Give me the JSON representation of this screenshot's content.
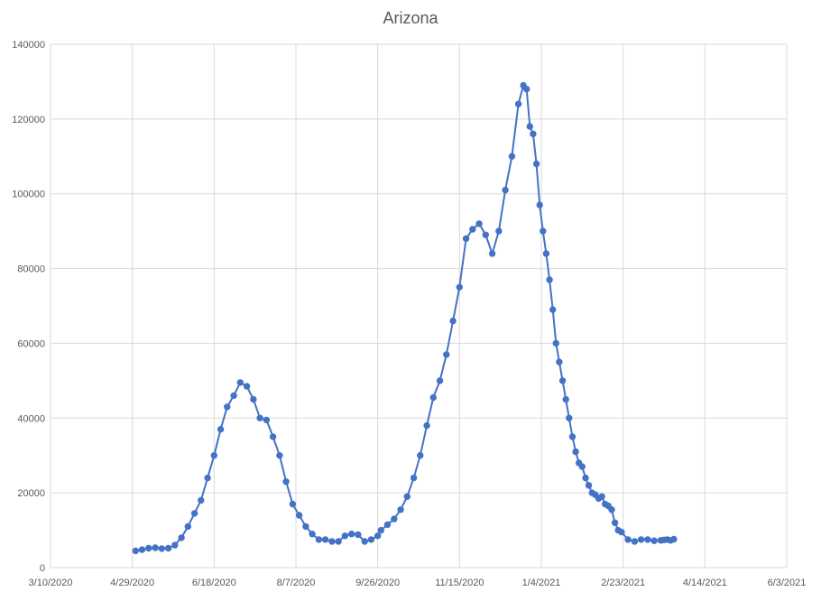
{
  "chart_data": {
    "type": "line",
    "title": "Arizona",
    "xlabel": "",
    "ylabel": "",
    "x_axis": {
      "type": "date",
      "min": "2020-03-10",
      "max": "2021-06-03",
      "tick_labels": [
        "3/10/2020",
        "4/29/2020",
        "6/18/2020",
        "8/7/2020",
        "9/26/2020",
        "11/15/2020",
        "1/4/2021",
        "2/23/2021",
        "4/14/2021",
        "6/3/2021"
      ]
    },
    "y_axis": {
      "min": 0,
      "max": 140000,
      "tick_labels": [
        "0",
        "20000",
        "40000",
        "60000",
        "80000",
        "100000",
        "120000",
        "140000"
      ]
    },
    "gridlines": true,
    "legend": "none",
    "series_color": "#4472C4",
    "x": [
      "2020-05-01",
      "2020-05-05",
      "2020-05-09",
      "2020-05-13",
      "2020-05-17",
      "2020-05-21",
      "2020-05-25",
      "2020-05-29",
      "2020-06-02",
      "2020-06-06",
      "2020-06-10",
      "2020-06-14",
      "2020-06-18",
      "2020-06-22",
      "2020-06-26",
      "2020-06-30",
      "2020-07-04",
      "2020-07-08",
      "2020-07-12",
      "2020-07-16",
      "2020-07-20",
      "2020-07-24",
      "2020-07-28",
      "2020-08-01",
      "2020-08-05",
      "2020-08-09",
      "2020-08-13",
      "2020-08-17",
      "2020-08-21",
      "2020-08-25",
      "2020-08-29",
      "2020-09-02",
      "2020-09-06",
      "2020-09-10",
      "2020-09-14",
      "2020-09-18",
      "2020-09-22",
      "2020-09-26",
      "2020-09-28",
      "2020-10-02",
      "2020-10-06",
      "2020-10-10",
      "2020-10-14",
      "2020-10-18",
      "2020-10-22",
      "2020-10-26",
      "2020-10-30",
      "2020-11-03",
      "2020-11-07",
      "2020-11-11",
      "2020-11-15",
      "2020-11-19",
      "2020-11-23",
      "2020-11-27",
      "2020-12-01",
      "2020-12-05",
      "2020-12-09",
      "2020-12-13",
      "2020-12-17",
      "2020-12-21",
      "2020-12-24",
      "2020-12-26",
      "2020-12-28",
      "2020-12-30",
      "2021-01-01",
      "2021-01-03",
      "2021-01-05",
      "2021-01-07",
      "2021-01-09",
      "2021-01-11",
      "2021-01-13",
      "2021-01-15",
      "2021-01-17",
      "2021-01-19",
      "2021-01-21",
      "2021-01-23",
      "2021-01-25",
      "2021-01-27",
      "2021-01-29",
      "2021-01-31",
      "2021-02-02",
      "2021-02-04",
      "2021-02-06",
      "2021-02-08",
      "2021-02-10",
      "2021-02-12",
      "2021-02-14",
      "2021-02-16",
      "2021-02-18",
      "2021-02-20",
      "2021-02-22",
      "2021-02-26",
      "2021-03-02",
      "2021-03-06",
      "2021-03-10",
      "2021-03-14",
      "2021-03-18",
      "2021-03-20",
      "2021-03-22",
      "2021-03-24",
      "2021-03-26"
    ],
    "values": [
      4500,
      4800,
      5200,
      5300,
      5100,
      5200,
      6000,
      8000,
      11000,
      14500,
      18000,
      24000,
      30000,
      37000,
      43000,
      46000,
      49500,
      48500,
      45000,
      40000,
      39500,
      35000,
      30000,
      23000,
      17000,
      14000,
      11000,
      9000,
      7500,
      7500,
      7000,
      7000,
      8500,
      9000,
      8800,
      7000,
      7500,
      8500,
      10000,
      11500,
      13000,
      15500,
      19000,
      24000,
      30000,
      38000,
      45500,
      50000,
      57000,
      66000,
      75000,
      88000,
      90500,
      92000,
      89000,
      84000,
      90000,
      101000,
      110000,
      124000,
      129000,
      128000,
      118000,
      116000,
      108000,
      97000,
      90000,
      84000,
      77000,
      69000,
      60000,
      55000,
      50000,
      45000,
      40000,
      35000,
      31000,
      28000,
      27000,
      24000,
      22000,
      20000,
      19500,
      18500,
      19000,
      17000,
      16500,
      15500,
      12000,
      10000,
      9500,
      7500,
      7000,
      7500,
      7500,
      7200,
      7300,
      7400,
      7500,
      7300,
      7600
    ]
  }
}
